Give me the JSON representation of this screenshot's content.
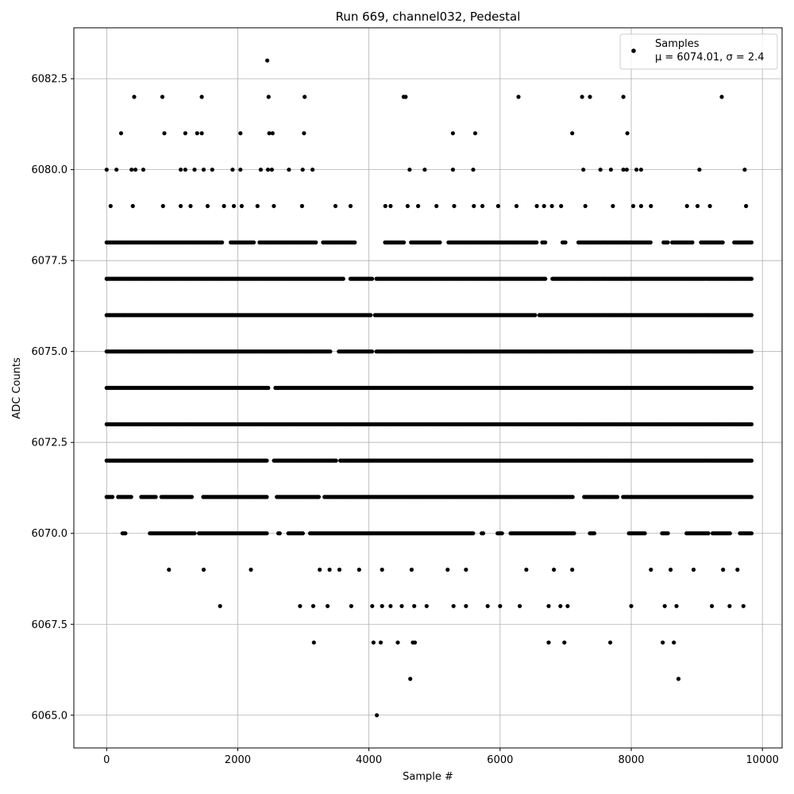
{
  "chart_data": {
    "type": "scatter",
    "title": "Run 669, channel032, Pedestal",
    "xlabel": "Sample #",
    "ylabel": "ADC Counts",
    "xlim": [
      -500,
      10300
    ],
    "ylim": [
      6064.1,
      6083.9
    ],
    "xticks": [
      0,
      2000,
      4000,
      6000,
      8000,
      10000
    ],
    "xtick_labels": [
      "0",
      "2000",
      "4000",
      "6000",
      "8000",
      "10000"
    ],
    "yticks": [
      6065.0,
      6067.5,
      6070.0,
      6072.5,
      6075.0,
      6077.5,
      6080.0,
      6082.5
    ],
    "ytick_labels": [
      "6065.0",
      "6067.5",
      "6070.0",
      "6072.5",
      "6075.0",
      "6077.5",
      "6080.0",
      "6082.5"
    ],
    "grid": true,
    "legend_position": "top-right",
    "marker_color": "#000000",
    "series": [
      {
        "name": "Samples",
        "stat_label": "μ = 6074.01, σ = 2.4",
        "points": [
          [
            0,
            6080
          ],
          [
            150,
            6080
          ],
          [
            420,
            6082
          ],
          [
            850,
            6082
          ],
          [
            1450,
            6082
          ],
          [
            2450,
            6083
          ],
          [
            2470,
            6082
          ],
          [
            3020,
            6082
          ],
          [
            4530,
            6082
          ],
          [
            4560,
            6082
          ],
          [
            6280,
            6082
          ],
          [
            7250,
            6082
          ],
          [
            7370,
            6082
          ],
          [
            7880,
            6082
          ],
          [
            9380,
            6082
          ],
          [
            220,
            6081
          ],
          [
            880,
            6081
          ],
          [
            1200,
            6081
          ],
          [
            1380,
            6081
          ],
          [
            1450,
            6081
          ],
          [
            2040,
            6081
          ],
          [
            2480,
            6081
          ],
          [
            2530,
            6081
          ],
          [
            3010,
            6081
          ],
          [
            5280,
            6081
          ],
          [
            5620,
            6081
          ],
          [
            7100,
            6081
          ],
          [
            7940,
            6081
          ],
          [
            380,
            6080
          ],
          [
            440,
            6080
          ],
          [
            560,
            6080
          ],
          [
            1130,
            6080
          ],
          [
            1200,
            6080
          ],
          [
            1340,
            6080
          ],
          [
            1480,
            6080
          ],
          [
            1610,
            6080
          ],
          [
            1920,
            6080
          ],
          [
            2040,
            6080
          ],
          [
            2350,
            6080
          ],
          [
            2460,
            6080
          ],
          [
            2520,
            6080
          ],
          [
            2780,
            6080
          ],
          [
            2990,
            6080
          ],
          [
            3140,
            6080
          ],
          [
            4620,
            6080
          ],
          [
            4850,
            6080
          ],
          [
            5280,
            6080
          ],
          [
            5590,
            6080
          ],
          [
            7270,
            6080
          ],
          [
            7530,
            6080
          ],
          [
            7690,
            6080
          ],
          [
            7880,
            6080
          ],
          [
            7930,
            6080
          ],
          [
            8080,
            6080
          ],
          [
            8150,
            6080
          ],
          [
            9040,
            6080
          ],
          [
            9730,
            6080
          ],
          [
            60,
            6079
          ],
          [
            400,
            6079
          ],
          [
            860,
            6079
          ],
          [
            1130,
            6079
          ],
          [
            1280,
            6079
          ],
          [
            1540,
            6079
          ],
          [
            1790,
            6079
          ],
          [
            1940,
            6079
          ],
          [
            2060,
            6079
          ],
          [
            2300,
            6079
          ],
          [
            2550,
            6079
          ],
          [
            2980,
            6079
          ],
          [
            3490,
            6079
          ],
          [
            3720,
            6079
          ],
          [
            4250,
            6079
          ],
          [
            4330,
            6079
          ],
          [
            4590,
            6079
          ],
          [
            4750,
            6079
          ],
          [
            5030,
            6079
          ],
          [
            5300,
            6079
          ],
          [
            5600,
            6079
          ],
          [
            5730,
            6079
          ],
          [
            5970,
            6079
          ],
          [
            6250,
            6079
          ],
          [
            6560,
            6079
          ],
          [
            6670,
            6079
          ],
          [
            6790,
            6079
          ],
          [
            6930,
            6079
          ],
          [
            7300,
            6079
          ],
          [
            7720,
            6079
          ],
          [
            8030,
            6079
          ],
          [
            8150,
            6079
          ],
          [
            8300,
            6079
          ],
          [
            8850,
            6079
          ],
          [
            9010,
            6079
          ],
          [
            9200,
            6079
          ],
          [
            9750,
            6079
          ],
          [
            950,
            6069
          ],
          [
            1480,
            6069
          ],
          [
            2200,
            6069
          ],
          [
            3250,
            6069
          ],
          [
            3400,
            6069
          ],
          [
            3550,
            6069
          ],
          [
            3850,
            6069
          ],
          [
            4200,
            6069
          ],
          [
            4650,
            6069
          ],
          [
            5200,
            6069
          ],
          [
            5480,
            6069
          ],
          [
            6400,
            6069
          ],
          [
            6820,
            6069
          ],
          [
            7100,
            6069
          ],
          [
            8300,
            6069
          ],
          [
            8600,
            6069
          ],
          [
            8950,
            6069
          ],
          [
            9400,
            6069
          ],
          [
            9620,
            6069
          ],
          [
            1730,
            6068
          ],
          [
            2950,
            6068
          ],
          [
            3150,
            6068
          ],
          [
            3370,
            6068
          ],
          [
            3730,
            6068
          ],
          [
            4050,
            6068
          ],
          [
            4200,
            6068
          ],
          [
            4330,
            6068
          ],
          [
            4500,
            6068
          ],
          [
            4690,
            6068
          ],
          [
            4880,
            6068
          ],
          [
            5290,
            6068
          ],
          [
            5480,
            6068
          ],
          [
            5810,
            6068
          ],
          [
            6000,
            6068
          ],
          [
            6300,
            6068
          ],
          [
            6740,
            6068
          ],
          [
            6920,
            6068
          ],
          [
            7030,
            6068
          ],
          [
            8000,
            6068
          ],
          [
            8510,
            6068
          ],
          [
            8690,
            6068
          ],
          [
            9230,
            6068
          ],
          [
            9500,
            6068
          ],
          [
            9710,
            6068
          ],
          [
            3160,
            6067
          ],
          [
            4070,
            6067
          ],
          [
            4180,
            6067
          ],
          [
            4440,
            6067
          ],
          [
            4670,
            6067
          ],
          [
            4700,
            6067
          ],
          [
            6740,
            6067
          ],
          [
            6980,
            6067
          ],
          [
            7680,
            6067
          ],
          [
            8480,
            6067
          ],
          [
            8650,
            6067
          ],
          [
            4630,
            6066
          ],
          [
            8720,
            6066
          ],
          [
            4120,
            6065
          ]
        ]
      }
    ],
    "dense_rows": [
      {
        "value": 6078,
        "gaps": [
          [
            1780,
            1880
          ],
          [
            2250,
            2320
          ],
          [
            3200,
            3280
          ],
          [
            3800,
            4230
          ],
          [
            4550,
            4620
          ],
          [
            5100,
            5200
          ],
          [
            6560,
            6640
          ],
          [
            6700,
            6950
          ],
          [
            7000,
            7180
          ],
          [
            8300,
            8480
          ],
          [
            8580,
            8620
          ],
          [
            8950,
            9050
          ],
          [
            9400,
            9550
          ]
        ]
      },
      {
        "value": 6077,
        "gaps": [
          [
            3630,
            3700
          ],
          [
            4050,
            4100
          ],
          [
            6700,
            6780
          ]
        ]
      },
      {
        "value": 6076,
        "gaps": [
          [
            4030,
            4090
          ],
          [
            6540,
            6590
          ]
        ]
      },
      {
        "value": 6075,
        "gaps": [
          [
            3420,
            3520
          ],
          [
            4060,
            4100
          ]
        ]
      },
      {
        "value": 6074,
        "gaps": [
          [
            2480,
            2560
          ]
        ]
      },
      {
        "value": 6073,
        "gaps": []
      },
      {
        "value": 6072,
        "gaps": [
          [
            2450,
            2550
          ],
          [
            3500,
            3550
          ]
        ]
      },
      {
        "value": 6071,
        "gaps": [
          [
            100,
            170
          ],
          [
            380,
            520
          ],
          [
            750,
            830
          ],
          [
            1320,
            1460
          ],
          [
            2450,
            2590
          ],
          [
            3250,
            3320
          ],
          [
            7120,
            7280
          ],
          [
            7800,
            7870
          ]
        ]
      },
      {
        "value": 6070,
        "gaps": [
          [
            0,
            220
          ],
          [
            290,
            640
          ],
          [
            1350,
            1400
          ],
          [
            2450,
            2600
          ],
          [
            2650,
            2770
          ],
          [
            3000,
            3100
          ],
          [
            5600,
            5700
          ],
          [
            5750,
            5950
          ],
          [
            6030,
            6150
          ],
          [
            7150,
            7350
          ],
          [
            7450,
            7950
          ],
          [
            8220,
            8450
          ],
          [
            8580,
            8830
          ],
          [
            9180,
            9230
          ],
          [
            9510,
            9650
          ]
        ]
      }
    ]
  }
}
